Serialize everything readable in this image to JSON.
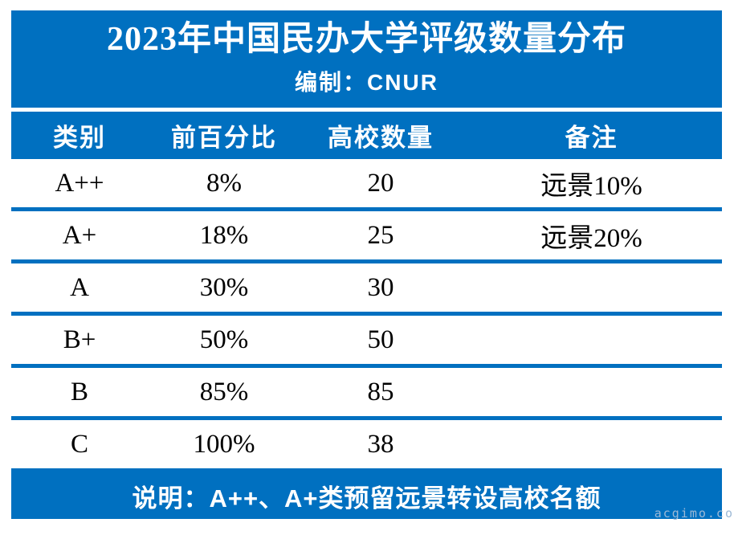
{
  "colors": {
    "accent_blue": "#0070C0",
    "band_text": "#FFFFFF",
    "body_text": "#000000",
    "watermark_text": "#9DB9D6"
  },
  "header": {
    "title": "2023年中国民办大学评级数量分布",
    "subtitle": "编制：CNUR"
  },
  "table": {
    "columns": [
      "类别",
      "前百分比",
      "高校数量",
      "备注"
    ],
    "rows": [
      [
        "A++",
        "8%",
        "20",
        "远景10%"
      ],
      [
        "A+",
        "18%",
        "25",
        "远景20%"
      ],
      [
        "A",
        "30%",
        "30",
        ""
      ],
      [
        "B+",
        "50%",
        "50",
        ""
      ],
      [
        "B",
        "85%",
        "85",
        ""
      ],
      [
        "C",
        "100%",
        "38",
        ""
      ]
    ]
  },
  "footer": {
    "note": "说明：A++、A+类预留远景转设高校名额"
  },
  "watermark": "acgimo.co",
  "chart_data": {
    "type": "table",
    "title": "2023年中国民办大学评级数量分布",
    "subtitle": "编制：CNUR",
    "columns": [
      "类别",
      "前百分比",
      "高校数量",
      "备注"
    ],
    "rows": [
      {
        "类别": "A++",
        "前百分比": "8%",
        "高校数量": 20,
        "备注": "远景10%"
      },
      {
        "类别": "A+",
        "前百分比": "18%",
        "高校数量": 25,
        "备注": "远景20%"
      },
      {
        "类别": "A",
        "前百分比": "30%",
        "高校数量": 30,
        "备注": ""
      },
      {
        "类别": "B+",
        "前百分比": "50%",
        "高校数量": 50,
        "备注": ""
      },
      {
        "类别": "B",
        "前百分比": "85%",
        "高校数量": 85,
        "备注": ""
      },
      {
        "类别": "C",
        "前百分比": "100%",
        "高校数量": 38,
        "备注": ""
      }
    ],
    "note": "说明：A++、A+类预留远景转设高校名额"
  }
}
